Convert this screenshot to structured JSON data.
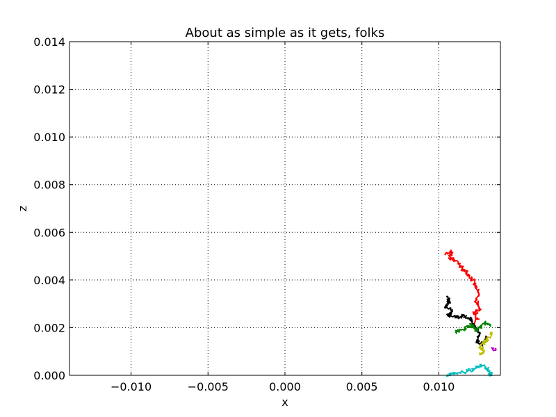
{
  "chart_data": {
    "type": "line",
    "title": "About as simple as it gets, folks",
    "xlabel": "x",
    "ylabel": "z",
    "xlim": [
      -0.014,
      0.014
    ],
    "ylim": [
      0.0,
      0.014
    ],
    "xticks": [
      -0.01,
      -0.005,
      0.0,
      0.005,
      0.01
    ],
    "xtick_labels": [
      "−0.010",
      "−0.005",
      "0.000",
      "0.005",
      "0.010"
    ],
    "yticks": [
      0.0,
      0.002,
      0.004,
      0.006,
      0.008,
      0.01,
      0.012,
      0.014
    ],
    "ytick_labels": [
      "0.000",
      "0.002",
      "0.004",
      "0.006",
      "0.008",
      "0.010",
      "0.012",
      "0.014"
    ],
    "grid": true,
    "series": [
      {
        "color": "#ff0000",
        "points": [
          [
            0.0105,
            0.0051
          ],
          [
            0.0108,
            0.0052
          ],
          [
            0.0107,
            0.0049
          ],
          [
            0.0111,
            0.0048
          ],
          [
            0.0114,
            0.0046
          ],
          [
            0.0116,
            0.0044
          ],
          [
            0.0119,
            0.0043
          ],
          [
            0.0122,
            0.004
          ],
          [
            0.0124,
            0.0037
          ],
          [
            0.0126,
            0.0034
          ],
          [
            0.0124,
            0.0031
          ],
          [
            0.0127,
            0.0028
          ],
          [
            0.0123,
            0.0026
          ],
          [
            0.0125,
            0.0024
          ],
          [
            0.0121,
            0.0021
          ],
          [
            0.0124,
            0.0019
          ]
        ]
      },
      {
        "color": "#000000",
        "points": [
          [
            0.0105,
            0.0033
          ],
          [
            0.0107,
            0.0031
          ],
          [
            0.0104,
            0.0029
          ],
          [
            0.0108,
            0.0027
          ],
          [
            0.0106,
            0.0025
          ],
          [
            0.011,
            0.0025
          ],
          [
            0.0113,
            0.0024
          ],
          [
            0.0116,
            0.0025
          ],
          [
            0.012,
            0.0024
          ],
          [
            0.0122,
            0.0022
          ],
          [
            0.0125,
            0.0019
          ],
          [
            0.0127,
            0.0017
          ],
          [
            0.0124,
            0.0014
          ],
          [
            0.0128,
            0.0013
          ],
          [
            0.0131,
            0.0016
          ]
        ]
      },
      {
        "color": "#008000",
        "points": [
          [
            0.011,
            0.0018
          ],
          [
            0.0114,
            0.0019
          ],
          [
            0.0118,
            0.002
          ],
          [
            0.0121,
            0.0021
          ],
          [
            0.0124,
            0.0019
          ],
          [
            0.0127,
            0.002
          ],
          [
            0.013,
            0.0022
          ],
          [
            0.0134,
            0.0021
          ]
        ]
      },
      {
        "color": "#bfbf00",
        "points": [
          [
            0.0126,
            0.0009
          ],
          [
            0.0129,
            0.001
          ],
          [
            0.0127,
            0.0012
          ],
          [
            0.013,
            0.0014
          ],
          [
            0.0132,
            0.0015
          ],
          [
            0.0135,
            0.0018
          ]
        ]
      },
      {
        "color": "#00bfbf",
        "points": [
          [
            0.0105,
            0.0
          ],
          [
            0.011,
            0.0001
          ],
          [
            0.0115,
            0.0001
          ],
          [
            0.012,
            0.0002
          ],
          [
            0.0124,
            0.0003
          ],
          [
            0.0127,
            0.0004
          ],
          [
            0.0131,
            0.0003
          ],
          [
            0.0133,
            0.0001
          ],
          [
            0.0134,
            0.0
          ]
        ]
      },
      {
        "color": "#bf00bf",
        "points": [
          [
            0.0135,
            0.0011
          ],
          [
            0.0137,
            0.0011
          ]
        ]
      }
    ]
  }
}
